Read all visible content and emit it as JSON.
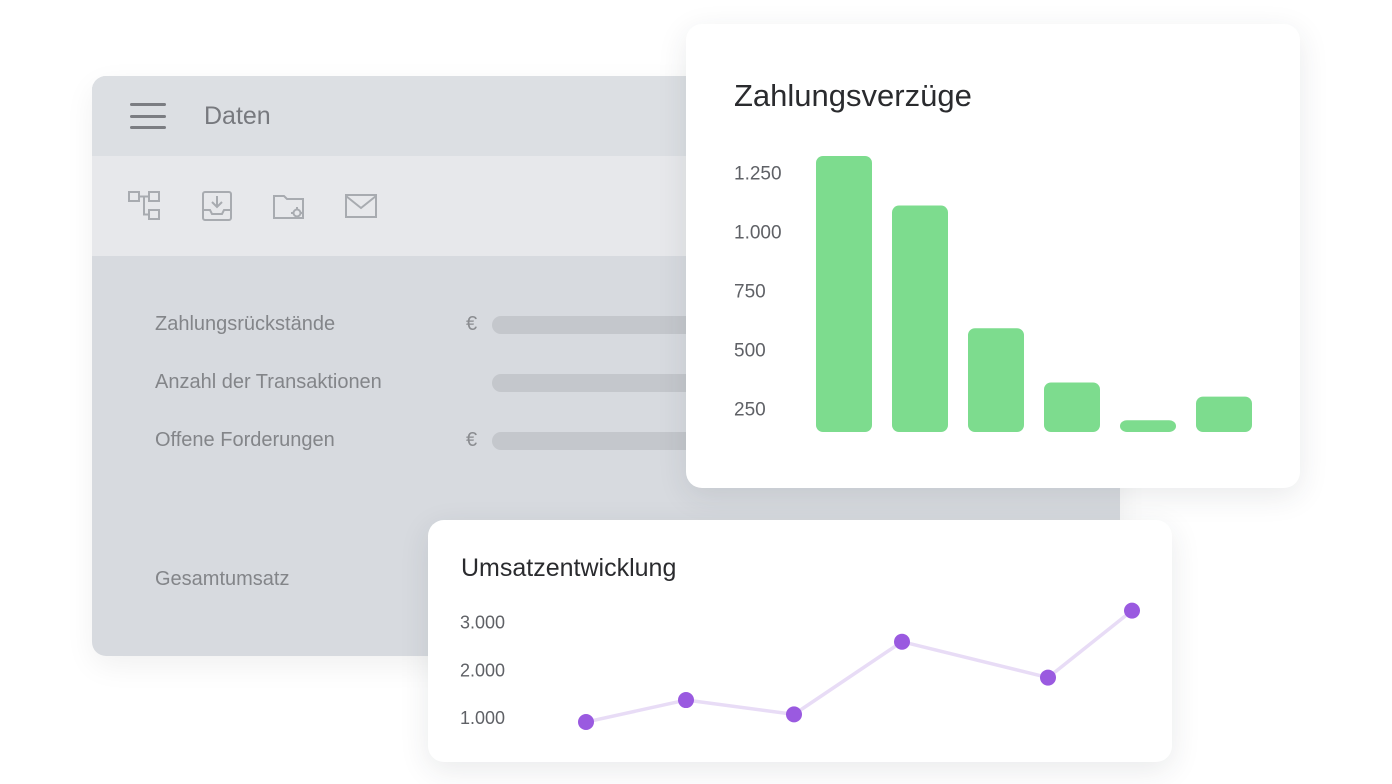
{
  "app": {
    "title": "Daten",
    "toolbar": [
      {
        "icon": "hierarchy-icon"
      },
      {
        "icon": "download-tray-icon"
      },
      {
        "icon": "folder-settings-icon"
      },
      {
        "icon": "mail-icon"
      }
    ],
    "fields": [
      {
        "label": "Zahlungsrückstände",
        "currency": "€"
      },
      {
        "label": "Anzahl der Transaktionen",
        "currency": ""
      },
      {
        "label": "Offene Forderungen",
        "currency": "€"
      },
      {
        "label": "Gesamtumsatz",
        "currency": ""
      }
    ]
  },
  "colors": {
    "bar": "#7ddc8e",
    "line": "#e8dcf6",
    "point": "#9a5ae0",
    "window_bg": "#d7dadf"
  },
  "chart_data": [
    {
      "type": "bar",
      "title": "Zahlungsverzüge",
      "yticks": [
        "1.250",
        "1.000",
        "750",
        "500",
        "250"
      ],
      "ytick_values": [
        1250,
        1000,
        750,
        500,
        250
      ],
      "values": [
        1320,
        1110,
        590,
        360,
        200,
        300
      ],
      "ylim": [
        150,
        1320
      ],
      "grid": false,
      "legend": "none"
    },
    {
      "type": "line",
      "title": "Umsatzentwicklung",
      "yticks": [
        "3.000",
        "2.000",
        "1.000"
      ],
      "ytick_values": [
        3000,
        2000,
        1000
      ],
      "x": [
        1,
        2,
        3,
        4,
        5,
        6
      ],
      "values": [
        920,
        1380,
        1080,
        2600,
        1850,
        3250
      ],
      "ylim": [
        0,
        3500
      ],
      "grid": false,
      "legend": "none"
    }
  ]
}
